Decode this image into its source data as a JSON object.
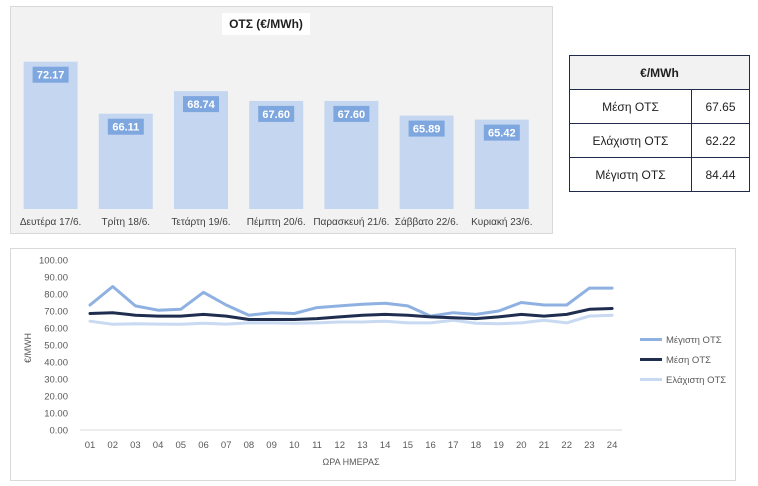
{
  "bar_panel": {
    "title": "ΟΤΣ (€/MWh)"
  },
  "stats_table": {
    "header": "€/MWh",
    "rows": [
      {
        "label": "Μέση ΟΤΣ",
        "value": "67.65"
      },
      {
        "label": "Ελάχιστη ΟΤΣ",
        "value": "62.22"
      },
      {
        "label": "Μέγιστη ΟΤΣ",
        "value": "84.44"
      }
    ]
  },
  "colors": {
    "bar": "#c5d7f0",
    "bar_label_bg": "#7ea6df",
    "max_line": "#8eb1e2",
    "mean_line": "#1f2d4f",
    "min_line": "#c8d9f2"
  },
  "chart_data": [
    {
      "type": "bar",
      "title": "ΟΤΣ (€/MWh)",
      "categories": [
        "Δευτέρα 17/6.",
        "Τρίτη 18/6.",
        "Τετάρτη 19/6.",
        "Πέμπτη 20/6.",
        "Παρασκευή 21/6.",
        "Σάββατο 22/6.",
        "Κυριακή 23/6."
      ],
      "values": [
        72.17,
        66.11,
        68.74,
        67.6,
        67.6,
        65.89,
        65.42
      ],
      "value_labels": [
        "72.17",
        "66.11",
        "68.74",
        "67.60",
        "67.60",
        "65.89",
        "65.42"
      ],
      "ylim": [
        55,
        74
      ],
      "grid": false
    },
    {
      "type": "line",
      "xlabel": "ΩΡΑ ΗΜΕΡΑΣ",
      "ylabel": "€/MWH",
      "x": [
        "01",
        "02",
        "03",
        "04",
        "05",
        "06",
        "07",
        "08",
        "09",
        "10",
        "11",
        "12",
        "13",
        "14",
        "15",
        "16",
        "17",
        "18",
        "19",
        "20",
        "21",
        "22",
        "23",
        "24"
      ],
      "ylim": [
        0,
        100
      ],
      "y_ticks": [
        "0.00",
        "10.00",
        "20.00",
        "30.00",
        "40.00",
        "50.00",
        "60.00",
        "70.00",
        "80.00",
        "90.00",
        "100.00"
      ],
      "grid": false,
      "legend": "right",
      "series": [
        {
          "name": "Μέγιστη ΟΤΣ",
          "values": [
            73.5,
            84.4,
            73.0,
            70.5,
            71.0,
            81.0,
            73.5,
            67.5,
            69.0,
            68.5,
            72.0,
            73.0,
            74.0,
            74.5,
            73.0,
            67.0,
            69.0,
            68.0,
            70.0,
            75.0,
            73.5,
            73.5,
            83.5,
            83.5
          ]
        },
        {
          "name": "Μέση ΟΤΣ",
          "values": [
            68.5,
            69.0,
            67.5,
            67.0,
            67.0,
            68.0,
            67.0,
            65.0,
            65.0,
            65.0,
            65.5,
            66.5,
            67.5,
            68.0,
            67.5,
            66.5,
            66.0,
            65.5,
            66.5,
            68.0,
            67.0,
            68.0,
            71.0,
            71.5
          ]
        },
        {
          "name": "Ελάχιστη ΟΤΣ",
          "values": [
            64.0,
            62.2,
            62.5,
            62.3,
            62.2,
            62.8,
            62.3,
            63.0,
            63.0,
            62.8,
            63.0,
            63.5,
            63.5,
            64.0,
            63.0,
            63.0,
            64.5,
            62.8,
            62.5,
            63.0,
            64.5,
            63.0,
            67.0,
            67.5
          ]
        }
      ]
    }
  ]
}
